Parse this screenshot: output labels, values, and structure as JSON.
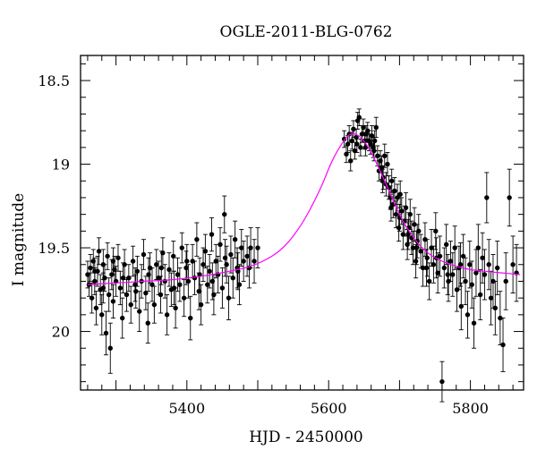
{
  "chart_data": {
    "type": "scatter",
    "title": "OGLE-2011-BLG-0762",
    "xlabel": "HJD - 2450000",
    "ylabel": "I magnitude",
    "xlim": [
      5250,
      5875
    ],
    "ylim": [
      20.35,
      18.35
    ],
    "y_inverted": true,
    "x_ticks": [
      5400,
      5600,
      5800
    ],
    "x_tick_labels": [
      "5400",
      "5600",
      "5800"
    ],
    "y_ticks": [
      18.5,
      19,
      19.5,
      20
    ],
    "y_tick_labels": [
      "18.5",
      "19",
      "19.5",
      "20"
    ],
    "grid": false,
    "colors": {
      "points": "#000000",
      "model": "#ff00ff"
    },
    "model": {
      "name": "",
      "x": [
        5260,
        5300,
        5340,
        5380,
        5420,
        5460,
        5490,
        5520,
        5540,
        5560,
        5575,
        5590,
        5605,
        5620,
        5632,
        5645,
        5660,
        5680,
        5700,
        5720,
        5740,
        5760,
        5780,
        5800,
        5820,
        5845,
        5870
      ],
      "y": [
        19.72,
        19.71,
        19.7,
        19.69,
        19.67,
        19.64,
        19.61,
        19.55,
        19.48,
        19.37,
        19.26,
        19.13,
        18.98,
        18.87,
        18.82,
        18.84,
        18.93,
        19.11,
        19.3,
        19.44,
        19.53,
        19.58,
        19.61,
        19.63,
        19.64,
        19.65,
        19.66
      ]
    },
    "series": [
      {
        "name": "",
        "points": [
          [
            5260,
            19.66,
            0.08
          ],
          [
            5262,
            19.72,
            0.07
          ],
          [
            5264,
            19.62,
            0.08
          ],
          [
            5266,
            19.8,
            0.09
          ],
          [
            5268,
            19.58,
            0.07
          ],
          [
            5270,
            19.7,
            0.08
          ],
          [
            5272,
            19.86,
            0.1
          ],
          [
            5274,
            19.64,
            0.09
          ],
          [
            5276,
            19.52,
            0.08
          ],
          [
            5278,
            19.75,
            0.09
          ],
          [
            5280,
            19.9,
            0.12
          ],
          [
            5282,
            19.6,
            0.09
          ],
          [
            5284,
            19.68,
            0.08
          ],
          [
            5286,
            20.01,
            0.13
          ],
          [
            5288,
            19.55,
            0.08
          ],
          [
            5290,
            19.78,
            0.1
          ],
          [
            5292,
            20.1,
            0.15
          ],
          [
            5294,
            19.66,
            0.09
          ],
          [
            5296,
            19.82,
            0.1
          ],
          [
            5298,
            19.63,
            0.08
          ],
          [
            5300,
            19.7,
            0.09
          ],
          [
            5303,
            19.56,
            0.08
          ],
          [
            5306,
            19.74,
            0.1
          ],
          [
            5309,
            19.92,
            0.12
          ],
          [
            5312,
            19.6,
            0.09
          ],
          [
            5315,
            19.78,
            0.1
          ],
          [
            5318,
            19.68,
            0.08
          ],
          [
            5321,
            19.84,
            0.11
          ],
          [
            5324,
            19.58,
            0.09
          ],
          [
            5327,
            19.72,
            0.1
          ],
          [
            5330,
            19.64,
            0.09
          ],
          [
            5333,
            19.88,
            0.12
          ],
          [
            5336,
            19.7,
            0.1
          ],
          [
            5339,
            19.54,
            0.09
          ],
          [
            5342,
            19.77,
            0.1
          ],
          [
            5345,
            19.95,
            0.12
          ],
          [
            5348,
            19.62,
            0.09
          ],
          [
            5351,
            19.72,
            0.1
          ],
          [
            5354,
            19.84,
            0.11
          ],
          [
            5357,
            19.6,
            0.09
          ],
          [
            5360,
            19.68,
            0.1
          ],
          [
            5363,
            19.78,
            0.11
          ],
          [
            5366,
            19.53,
            0.09
          ],
          [
            5369,
            19.7,
            0.1
          ],
          [
            5372,
            19.9,
            0.12
          ],
          [
            5375,
            19.63,
            0.1
          ],
          [
            5378,
            19.75,
            0.1
          ],
          [
            5381,
            19.55,
            0.09
          ],
          [
            5384,
            19.86,
            0.12
          ],
          [
            5387,
            19.66,
            0.1
          ],
          [
            5390,
            19.72,
            0.1
          ],
          [
            5393,
            19.5,
            0.09
          ],
          [
            5396,
            19.8,
            0.11
          ],
          [
            5399,
            19.62,
            0.1
          ],
          [
            5402,
            19.7,
            0.1
          ],
          [
            5405,
            19.92,
            0.13
          ],
          [
            5408,
            19.58,
            0.1
          ],
          [
            5411,
            19.68,
            0.1
          ],
          [
            5414,
            19.45,
            0.1
          ],
          [
            5417,
            19.76,
            0.11
          ],
          [
            5420,
            19.84,
            0.12
          ],
          [
            5423,
            19.6,
            0.1
          ],
          [
            5426,
            19.52,
            0.1
          ],
          [
            5429,
            19.72,
            0.11
          ],
          [
            5432,
            19.64,
            0.1
          ],
          [
            5435,
            19.42,
            0.1
          ],
          [
            5438,
            19.78,
            0.12
          ],
          [
            5441,
            19.58,
            0.1
          ],
          [
            5444,
            19.66,
            0.11
          ],
          [
            5447,
            19.48,
            0.1
          ],
          [
            5450,
            19.74,
            0.12
          ],
          [
            5453,
            19.3,
            0.11
          ],
          [
            5456,
            19.6,
            0.11
          ],
          [
            5459,
            19.8,
            0.13
          ],
          [
            5462,
            19.54,
            0.11
          ],
          [
            5465,
            19.68,
            0.12
          ],
          [
            5468,
            19.45,
            0.11
          ],
          [
            5471,
            19.62,
            0.12
          ],
          [
            5474,
            19.72,
            0.12
          ],
          [
            5477,
            19.5,
            0.11
          ],
          [
            5480,
            19.58,
            0.12
          ],
          [
            5485,
            19.55,
            0.12
          ],
          [
            5490,
            19.5,
            0.12
          ],
          [
            5495,
            19.58,
            0.13
          ],
          [
            5500,
            19.5,
            0.12
          ],
          [
            5270,
            19.64,
            0.08
          ],
          [
            5282,
            19.74,
            0.09
          ],
          [
            5296,
            19.58,
            0.08
          ],
          [
            5310,
            19.68,
            0.09
          ],
          [
            5328,
            19.76,
            0.1
          ],
          [
            5346,
            19.66,
            0.1
          ],
          [
            5364,
            19.62,
            0.1
          ],
          [
            5382,
            19.74,
            0.1
          ],
          [
            5400,
            19.58,
            0.1
          ],
          [
            5418,
            19.66,
            0.1
          ],
          [
            5436,
            19.7,
            0.11
          ],
          [
            5454,
            19.56,
            0.11
          ],
          [
            5472,
            19.64,
            0.11
          ],
          [
            5488,
            19.62,
            0.12
          ],
          [
            5622,
            18.85,
            0.05
          ],
          [
            5625,
            18.94,
            0.05
          ],
          [
            5627,
            18.88,
            0.05
          ],
          [
            5629,
            18.82,
            0.05
          ],
          [
            5631,
            18.98,
            0.06
          ],
          [
            5633,
            18.86,
            0.05
          ],
          [
            5635,
            18.79,
            0.05
          ],
          [
            5637,
            18.92,
            0.05
          ],
          [
            5639,
            18.84,
            0.05
          ],
          [
            5641,
            18.74,
            0.05
          ],
          [
            5643,
            18.72,
            0.05
          ],
          [
            5645,
            18.9,
            0.05
          ],
          [
            5647,
            18.82,
            0.05
          ],
          [
            5649,
            18.78,
            0.05
          ],
          [
            5651,
            18.86,
            0.05
          ],
          [
            5653,
            18.82,
            0.05
          ],
          [
            5655,
            18.8,
            0.05
          ],
          [
            5657,
            18.86,
            0.06
          ],
          [
            5659,
            18.88,
            0.06
          ],
          [
            5661,
            18.83,
            0.06
          ],
          [
            5663,
            18.9,
            0.06
          ],
          [
            5665,
            18.86,
            0.06
          ],
          [
            5667,
            18.78,
            0.06
          ],
          [
            5669,
            18.95,
            0.06
          ],
          [
            5671,
            19.04,
            0.06
          ],
          [
            5673,
            18.98,
            0.06
          ],
          [
            5675,
            19.02,
            0.07
          ],
          [
            5677,
            19.08,
            0.07
          ],
          [
            5679,
            18.95,
            0.07
          ],
          [
            5681,
            19.12,
            0.07
          ],
          [
            5683,
            19.0,
            0.07
          ],
          [
            5685,
            19.14,
            0.07
          ],
          [
            5687,
            19.2,
            0.07
          ],
          [
            5689,
            19.1,
            0.07
          ],
          [
            5691,
            19.24,
            0.08
          ],
          [
            5693,
            19.16,
            0.08
          ],
          [
            5695,
            19.3,
            0.08
          ],
          [
            5697,
            19.2,
            0.08
          ],
          [
            5699,
            19.38,
            0.08
          ],
          [
            5701,
            19.18,
            0.08
          ],
          [
            5703,
            19.28,
            0.08
          ],
          [
            5705,
            19.42,
            0.09
          ],
          [
            5707,
            19.34,
            0.09
          ],
          [
            5709,
            19.26,
            0.09
          ],
          [
            5711,
            19.48,
            0.09
          ],
          [
            5713,
            19.38,
            0.09
          ],
          [
            5715,
            19.3,
            0.09
          ],
          [
            5717,
            19.44,
            0.1
          ],
          [
            5719,
            19.5,
            0.1
          ],
          [
            5721,
            19.36,
            0.1
          ],
          [
            5723,
            19.58,
            0.1
          ],
          [
            5725,
            19.46,
            0.1
          ],
          [
            5727,
            19.4,
            0.1
          ],
          [
            5730,
            19.52,
            0.1
          ],
          [
            5733,
            19.62,
            0.11
          ],
          [
            5736,
            19.45,
            0.1
          ],
          [
            5739,
            19.56,
            0.11
          ],
          [
            5742,
            19.7,
            0.11
          ],
          [
            5745,
            19.5,
            0.11
          ],
          [
            5748,
            19.6,
            0.11
          ],
          [
            5751,
            19.4,
            0.11
          ],
          [
            5754,
            19.65,
            0.12
          ],
          [
            5757,
            19.55,
            0.12
          ],
          [
            5760,
            20.3,
            0.12
          ],
          [
            5763,
            19.62,
            0.12
          ],
          [
            5766,
            19.48,
            0.12
          ],
          [
            5769,
            19.7,
            0.12
          ],
          [
            5772,
            19.58,
            0.12
          ],
          [
            5775,
            19.66,
            0.13
          ],
          [
            5778,
            19.5,
            0.13
          ],
          [
            5781,
            19.75,
            0.13
          ],
          [
            5784,
            19.62,
            0.13
          ],
          [
            5787,
            19.85,
            0.14
          ],
          [
            5790,
            19.55,
            0.13
          ],
          [
            5793,
            19.7,
            0.14
          ],
          [
            5796,
            19.9,
            0.14
          ],
          [
            5799,
            19.6,
            0.14
          ],
          [
            5802,
            19.72,
            0.14
          ],
          [
            5805,
            19.95,
            0.15
          ],
          [
            5808,
            19.65,
            0.14
          ],
          [
            5811,
            19.5,
            0.14
          ],
          [
            5814,
            19.78,
            0.15
          ],
          [
            5817,
            19.56,
            0.15
          ],
          [
            5820,
            19.66,
            0.15
          ],
          [
            5823,
            19.2,
            0.15
          ],
          [
            5826,
            19.6,
            0.15
          ],
          [
            5829,
            19.8,
            0.16
          ],
          [
            5832,
            19.7,
            0.16
          ],
          [
            5835,
            19.86,
            0.16
          ],
          [
            5838,
            19.62,
            0.16
          ],
          [
            5842,
            19.92,
            0.16
          ],
          [
            5846,
            20.08,
            0.16
          ],
          [
            5850,
            19.7,
            0.17
          ],
          [
            5855,
            19.2,
            0.17
          ],
          [
            5860,
            19.6,
            0.17
          ],
          [
            5865,
            19.65,
            0.17
          ],
          [
            5640,
            18.88,
            0.05
          ],
          [
            5652,
            18.9,
            0.05
          ],
          [
            5664,
            18.92,
            0.06
          ],
          [
            5676,
            19.1,
            0.07
          ],
          [
            5688,
            19.26,
            0.08
          ],
          [
            5700,
            19.32,
            0.08
          ],
          [
            5712,
            19.42,
            0.09
          ],
          [
            5724,
            19.5,
            0.1
          ],
          [
            5738,
            19.62,
            0.11
          ],
          [
            5752,
            19.56,
            0.12
          ],
          [
            5768,
            19.66,
            0.12
          ],
          [
            5786,
            19.6,
            0.13
          ]
        ]
      }
    ]
  }
}
